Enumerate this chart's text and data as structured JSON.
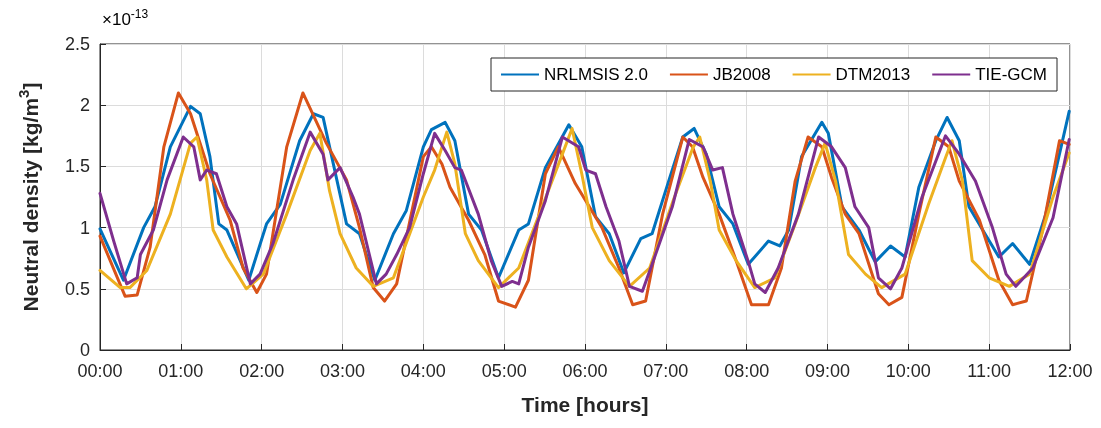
{
  "chart_data": {
    "type": "line",
    "xlabel": "Time [hours]",
    "ylabel": "Neutral density [kg/m$^{3}$]",
    "annotations": [
      "×10$^{-13}$"
    ],
    "xlim": [
      0,
      12
    ],
    "ylim": [
      0,
      2.5
    ],
    "xticks": [
      {
        "value": 0,
        "label": "00:00"
      },
      {
        "value": 1,
        "label": "01:00"
      },
      {
        "value": 2,
        "label": "02:00"
      },
      {
        "value": 3,
        "label": "03:00"
      },
      {
        "value": 4,
        "label": "04:00"
      },
      {
        "value": 5,
        "label": "05:00"
      },
      {
        "value": 6,
        "label": "06:00"
      },
      {
        "value": 7,
        "label": "07:00"
      },
      {
        "value": 8,
        "label": "08:00"
      },
      {
        "value": 9,
        "label": "09:00"
      },
      {
        "value": 10,
        "label": "10:00"
      },
      {
        "value": 11,
        "label": "11:00"
      },
      {
        "value": 12,
        "label": "12:00"
      }
    ],
    "yticks": [
      0,
      0.5,
      1,
      1.5,
      2,
      2.5
    ],
    "grid": true,
    "legend": "top right",
    "marker": "none",
    "line_style": "solid",
    "series": [
      {
        "name": "NRLMSIS 2.0",
        "color": "#0072bd",
        "x": [
          0,
          0.29,
          0.54,
          0.68,
          0.87,
          1.12,
          1.24,
          1.36,
          1.47,
          1.57,
          1.84,
          2.06,
          2.23,
          2.47,
          2.64,
          2.76,
          2.93,
          3.05,
          3.21,
          3.4,
          3.63,
          3.79,
          4.0,
          4.1,
          4.27,
          4.39,
          4.56,
          4.72,
          4.93,
          5.18,
          5.3,
          5.51,
          5.8,
          5.96,
          6.13,
          6.3,
          6.48,
          6.69,
          6.83,
          7.04,
          7.21,
          7.35,
          7.5,
          7.66,
          7.83,
          8.02,
          8.27,
          8.41,
          8.52,
          8.68,
          8.93,
          9.01,
          9.18,
          9.39,
          9.59,
          9.78,
          9.96,
          10.13,
          10.34,
          10.48,
          10.63,
          10.75,
          10.92,
          11.12,
          11.29,
          11.5,
          11.7,
          11.99
        ],
        "values": [
          0.99,
          0.57,
          1.0,
          1.17,
          1.66,
          1.99,
          1.93,
          1.58,
          1.03,
          0.98,
          0.57,
          1.03,
          1.19,
          1.71,
          1.93,
          1.9,
          1.39,
          1.03,
          0.95,
          0.57,
          0.95,
          1.14,
          1.66,
          1.8,
          1.86,
          1.71,
          1.11,
          0.98,
          0.59,
          0.98,
          1.03,
          1.49,
          1.84,
          1.66,
          1.09,
          0.95,
          0.63,
          0.91,
          0.95,
          1.39,
          1.74,
          1.81,
          1.6,
          1.17,
          1.03,
          0.7,
          0.89,
          0.85,
          0.98,
          1.58,
          1.86,
          1.77,
          1.17,
          0.98,
          0.72,
          0.85,
          0.76,
          1.33,
          1.71,
          1.9,
          1.71,
          1.17,
          0.98,
          0.76,
          0.87,
          0.7,
          1.11,
          1.95
        ]
      },
      {
        "name": "JB2008",
        "color": "#d95319",
        "x": [
          0,
          0.31,
          0.46,
          0.62,
          0.79,
          0.97,
          1.12,
          1.36,
          1.61,
          1.77,
          1.94,
          2.06,
          2.31,
          2.51,
          2.8,
          3.05,
          3.21,
          3.38,
          3.52,
          3.67,
          4.0,
          4.1,
          4.23,
          4.33,
          4.56,
          4.76,
          4.93,
          5.14,
          5.3,
          5.51,
          5.67,
          5.88,
          6.21,
          6.42,
          6.59,
          6.75,
          6.96,
          7.21,
          7.33,
          7.46,
          7.66,
          7.87,
          8.06,
          8.27,
          8.43,
          8.6,
          8.76,
          8.93,
          9.05,
          9.22,
          9.39,
          9.63,
          9.76,
          9.92,
          10.13,
          10.34,
          10.5,
          10.63,
          10.88,
          11.12,
          11.29,
          11.46,
          11.66,
          11.87,
          11.99
        ],
        "values": [
          0.93,
          0.44,
          0.45,
          0.84,
          1.66,
          2.1,
          1.93,
          1.44,
          1.06,
          0.67,
          0.47,
          0.62,
          1.66,
          2.1,
          1.69,
          1.39,
          1.0,
          0.51,
          0.4,
          0.54,
          1.58,
          1.66,
          1.52,
          1.33,
          1.06,
          0.78,
          0.4,
          0.35,
          0.57,
          1.44,
          1.66,
          1.36,
          1.0,
          0.67,
          0.37,
          0.4,
          1.11,
          1.74,
          1.66,
          1.41,
          1.11,
          0.73,
          0.37,
          0.37,
          0.67,
          1.38,
          1.74,
          1.66,
          1.41,
          1.11,
          0.95,
          0.46,
          0.37,
          0.43,
          1.11,
          1.74,
          1.66,
          1.38,
          1.06,
          0.57,
          0.37,
          0.4,
          0.98,
          1.71,
          1.68
        ]
      },
      {
        "name": "DTM2013",
        "color": "#edb120",
        "x": [
          0,
          0.25,
          0.37,
          0.58,
          0.87,
          1.12,
          1.2,
          1.32,
          1.4,
          1.57,
          1.81,
          2.02,
          2.31,
          2.6,
          2.72,
          2.84,
          2.97,
          3.17,
          3.38,
          3.63,
          4.0,
          4.14,
          4.29,
          4.39,
          4.52,
          4.68,
          4.93,
          5.18,
          5.47,
          5.72,
          5.84,
          5.96,
          6.09,
          6.3,
          6.55,
          6.8,
          7.09,
          7.34,
          7.42,
          7.55,
          7.66,
          7.87,
          8.1,
          8.35,
          8.6,
          8.85,
          8.97,
          9.1,
          9.26,
          9.47,
          9.67,
          9.96,
          10.25,
          10.46,
          10.54,
          10.67,
          10.79,
          11.0,
          11.25,
          11.5,
          11.79,
          11.99
        ],
        "values": [
          0.65,
          0.51,
          0.51,
          0.65,
          1.11,
          1.69,
          1.74,
          1.39,
          0.98,
          0.76,
          0.5,
          0.62,
          1.11,
          1.63,
          1.77,
          1.3,
          0.95,
          0.67,
          0.52,
          0.59,
          1.25,
          1.47,
          1.78,
          1.52,
          0.95,
          0.73,
          0.51,
          0.67,
          1.17,
          1.6,
          1.81,
          1.44,
          1.0,
          0.73,
          0.52,
          0.67,
          1.22,
          1.66,
          1.74,
          1.38,
          0.98,
          0.73,
          0.51,
          0.59,
          1.03,
          1.49,
          1.69,
          1.38,
          0.78,
          0.62,
          0.51,
          0.62,
          1.19,
          1.57,
          1.71,
          1.38,
          0.73,
          0.59,
          0.52,
          0.62,
          1.25,
          1.61
        ]
      },
      {
        "name": "TIE-GCM",
        "color": "#7e2f8e",
        "x": [
          0,
          0.17,
          0.33,
          0.46,
          0.5,
          0.66,
          0.83,
          1.03,
          1.16,
          1.24,
          1.32,
          1.44,
          1.57,
          1.69,
          1.86,
          1.98,
          2.14,
          2.39,
          2.6,
          2.76,
          2.82,
          2.97,
          3.13,
          3.21,
          3.42,
          3.54,
          3.67,
          3.83,
          4.0,
          4.14,
          4.27,
          4.39,
          4.47,
          4.68,
          4.84,
          4.97,
          5.1,
          5.18,
          5.3,
          5.51,
          5.72,
          5.92,
          6.01,
          6.13,
          6.26,
          6.42,
          6.55,
          6.71,
          6.83,
          7.08,
          7.29,
          7.46,
          7.58,
          7.7,
          7.83,
          8.03,
          8.1,
          8.23,
          8.39,
          8.64,
          8.89,
          9.05,
          9.22,
          9.34,
          9.51,
          9.63,
          9.78,
          9.92,
          10.17,
          10.46,
          10.63,
          10.83,
          11.04,
          11.21,
          11.33,
          11.54,
          11.79,
          11.99
        ],
        "values": [
          1.28,
          0.89,
          0.54,
          0.59,
          0.78,
          0.98,
          1.39,
          1.74,
          1.66,
          1.39,
          1.47,
          1.44,
          1.17,
          1.03,
          0.54,
          0.62,
          0.87,
          1.39,
          1.78,
          1.6,
          1.39,
          1.49,
          1.25,
          1.11,
          0.54,
          0.62,
          0.78,
          1.0,
          1.44,
          1.77,
          1.63,
          1.49,
          1.47,
          1.11,
          0.73,
          0.52,
          0.56,
          0.54,
          0.84,
          1.22,
          1.74,
          1.66,
          1.47,
          1.44,
          1.17,
          0.89,
          0.52,
          0.48,
          0.7,
          1.17,
          1.72,
          1.66,
          1.47,
          1.49,
          1.11,
          0.7,
          0.54,
          0.47,
          0.67,
          1.11,
          1.74,
          1.66,
          1.49,
          1.17,
          1.0,
          0.59,
          0.5,
          0.67,
          1.25,
          1.75,
          1.6,
          1.38,
          1.0,
          0.62,
          0.52,
          0.67,
          1.08,
          1.72
        ]
      }
    ]
  }
}
